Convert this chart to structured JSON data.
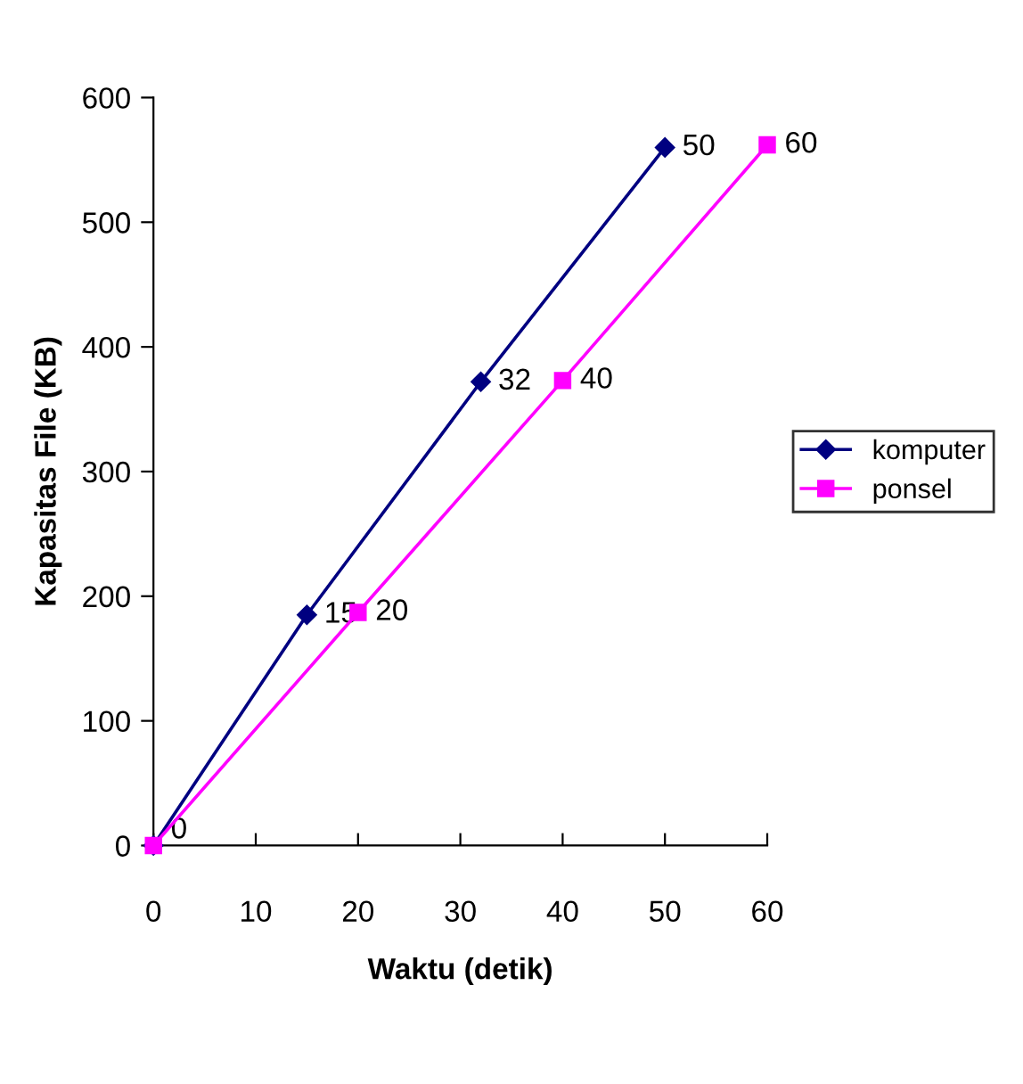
{
  "chart_data": {
    "type": "line",
    "xlabel": "Waktu (detik)",
    "ylabel": "Kapasitas File (KB)",
    "xlim": [
      0,
      60
    ],
    "xticks": [
      0,
      10,
      20,
      30,
      40,
      50,
      60
    ],
    "ylim": [
      0,
      600
    ],
    "yticks": [
      0,
      100,
      200,
      300,
      400,
      500,
      600
    ],
    "grid": false,
    "legend": "right",
    "series": [
      {
        "name": "komputer",
        "color": "#000080",
        "marker": "diamond",
        "x": [
          0,
          15,
          32,
          50
        ],
        "values": [
          0,
          185,
          372,
          560
        ]
      },
      {
        "name": "ponsel",
        "color": "#ff00ff",
        "marker": "square",
        "x": [
          0,
          20,
          40,
          60
        ],
        "values": [
          0,
          187,
          373,
          562
        ]
      }
    ],
    "annotations": [
      {
        "text": "0",
        "x": 0,
        "y": 0
      },
      {
        "text": "15",
        "x": 15,
        "y": 185
      },
      {
        "text": "32",
        "x": 32,
        "y": 372
      },
      {
        "text": "50",
        "x": 50,
        "y": 560
      },
      {
        "text": "20",
        "x": 20,
        "y": 187
      },
      {
        "text": "40",
        "x": 40,
        "y": 373
      },
      {
        "text": "60",
        "x": 60,
        "y": 562
      }
    ]
  }
}
